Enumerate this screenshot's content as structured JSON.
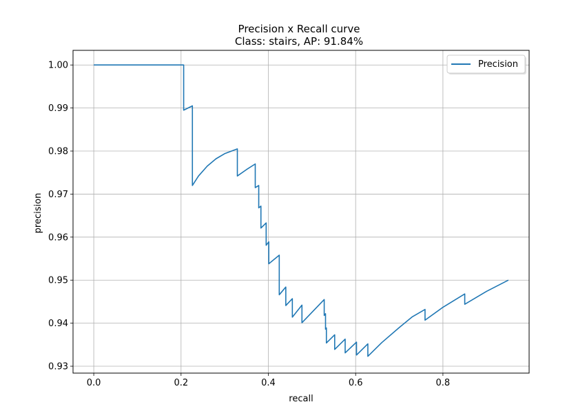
{
  "chart_data": {
    "type": "line",
    "title": "Precision x Recall curve",
    "subtitle": "Class: stairs, AP: 91.84%",
    "xlabel": "recall",
    "ylabel": "precision",
    "xlim": [
      -0.0475,
      0.9975
    ],
    "ylim": [
      0.9284,
      1.0034
    ],
    "xticks": [
      0.0,
      0.2,
      0.4,
      0.6,
      0.8
    ],
    "xtick_labels": [
      "0.0",
      "0.2",
      "0.4",
      "0.6",
      "0.8"
    ],
    "yticks": [
      0.93,
      0.94,
      0.95,
      0.96,
      0.97,
      0.98,
      0.99,
      1.0
    ],
    "ytick_labels": [
      "0.93",
      "0.94",
      "0.95",
      "0.96",
      "0.97",
      "0.98",
      "0.99",
      "1.00"
    ],
    "grid": true,
    "legend": "top-right",
    "series": [
      {
        "name": "Precision",
        "color": "#1f77b4",
        "points": [
          [
            0.0,
            1.0
          ],
          [
            0.206,
            1.0
          ],
          [
            0.206,
            0.9895
          ],
          [
            0.226,
            0.9905
          ],
          [
            0.226,
            0.972
          ],
          [
            0.24,
            0.9742
          ],
          [
            0.26,
            0.9765
          ],
          [
            0.28,
            0.9782
          ],
          [
            0.3,
            0.9794
          ],
          [
            0.329,
            0.9805
          ],
          [
            0.329,
            0.9742
          ],
          [
            0.35,
            0.9757
          ],
          [
            0.37,
            0.977
          ],
          [
            0.37,
            0.9715
          ],
          [
            0.378,
            0.972
          ],
          [
            0.378,
            0.9668
          ],
          [
            0.383,
            0.9672
          ],
          [
            0.383,
            0.9621
          ],
          [
            0.395,
            0.9633
          ],
          [
            0.395,
            0.9581
          ],
          [
            0.401,
            0.9589
          ],
          [
            0.401,
            0.9538
          ],
          [
            0.425,
            0.9558
          ],
          [
            0.425,
            0.9466
          ],
          [
            0.44,
            0.9484
          ],
          [
            0.44,
            0.9441
          ],
          [
            0.455,
            0.9457
          ],
          [
            0.455,
            0.9414
          ],
          [
            0.477,
            0.9442
          ],
          [
            0.477,
            0.9401
          ],
          [
            0.528,
            0.9455
          ],
          [
            0.528,
            0.9418
          ],
          [
            0.531,
            0.9422
          ],
          [
            0.531,
            0.9386
          ],
          [
            0.533,
            0.9389
          ],
          [
            0.533,
            0.9354
          ],
          [
            0.552,
            0.9373
          ],
          [
            0.552,
            0.9339
          ],
          [
            0.576,
            0.9363
          ],
          [
            0.576,
            0.9331
          ],
          [
            0.602,
            0.9356
          ],
          [
            0.602,
            0.9326
          ],
          [
            0.628,
            0.9352
          ],
          [
            0.628,
            0.9323
          ],
          [
            0.66,
            0.9355
          ],
          [
            0.7,
            0.939
          ],
          [
            0.73,
            0.9415
          ],
          [
            0.759,
            0.9432
          ],
          [
            0.759,
            0.9407
          ],
          [
            0.8,
            0.9437
          ],
          [
            0.85,
            0.9468
          ],
          [
            0.85,
            0.9444
          ],
          [
            0.9,
            0.9474
          ],
          [
            0.95,
            0.95
          ]
        ]
      }
    ]
  }
}
